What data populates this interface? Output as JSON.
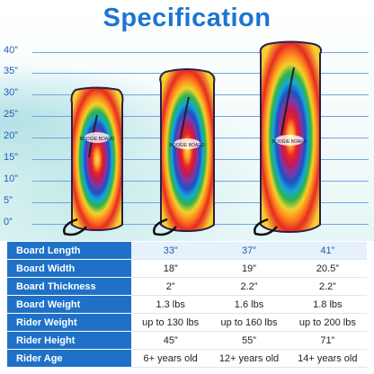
{
  "title": "Specification",
  "ruler": [
    "40”",
    "35”",
    "30”",
    "25”",
    "20”",
    "15”",
    "10”",
    "5”",
    "0”"
  ],
  "board_logo": "BOOGIE BOARD",
  "specs": [
    {
      "label": "Board Length",
      "values": [
        "33”",
        "37”",
        "41”"
      ]
    },
    {
      "label": "Board Width",
      "values": [
        "18”",
        "19”",
        "20.5”"
      ]
    },
    {
      "label": "Board Thickness",
      "values": [
        "2”",
        "2.2”",
        "2.2”"
      ]
    },
    {
      "label": "Board Weight",
      "values": [
        "1.3 lbs",
        "1.6 lbs",
        "1.8 lbs"
      ]
    },
    {
      "label": "Rider Weight",
      "values": [
        "up to 130 lbs",
        "up to 160 lbs",
        "up to 200 lbs"
      ]
    },
    {
      "label": "Rider Height",
      "values": [
        "45”",
        "55”",
        "71”"
      ]
    },
    {
      "label": "Rider Age",
      "values": [
        "6+ years old",
        "12+ years old",
        "14+ years old"
      ]
    }
  ],
  "colors": {
    "title": "#1a76d2",
    "label_bg": "#1f71c8",
    "gridline": "#6fa6e0"
  }
}
